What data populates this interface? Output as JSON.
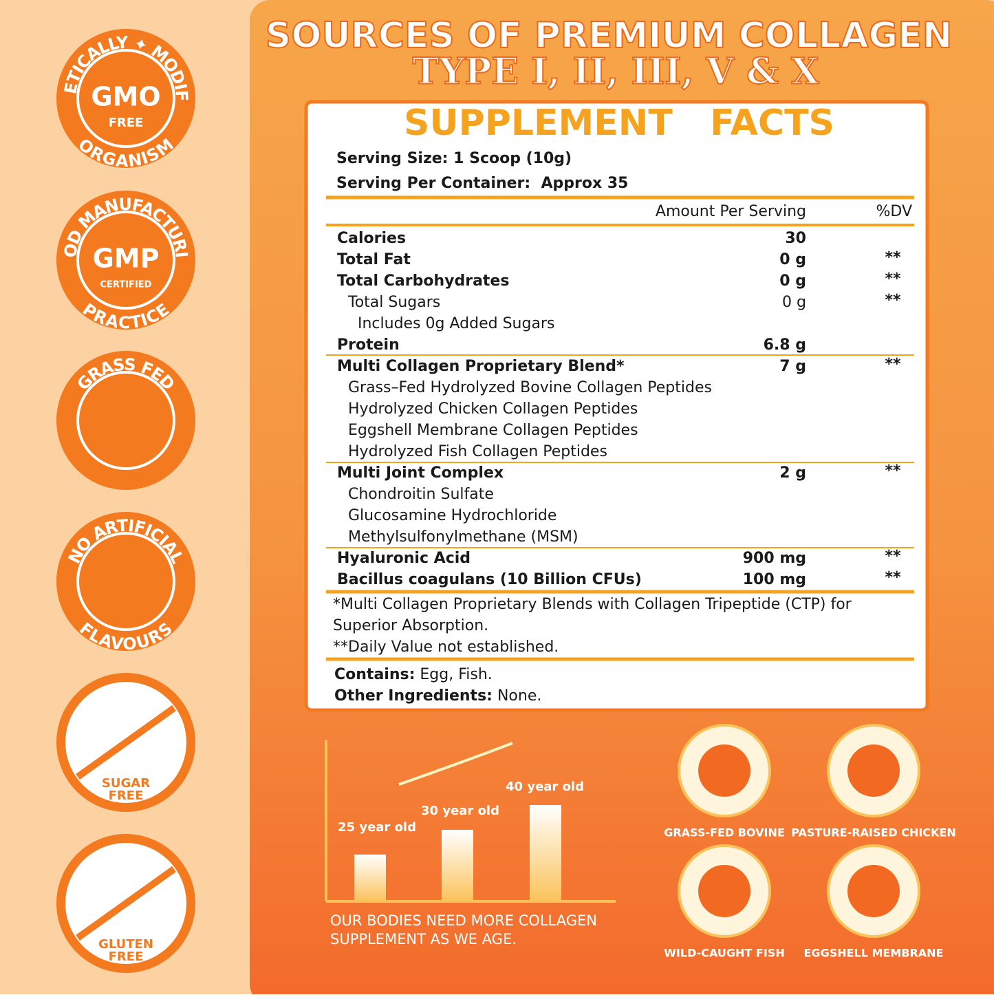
{
  "header": {
    "title_line1": "SOURCES OF PREMIUM COLLAGEN",
    "title_line2": "TYPE I, II, III, V & X"
  },
  "badges": [
    {
      "top": "GENETICALLY ✦ MODIFIED",
      "center": "GMO",
      "sub": "FREE",
      "bottom": "ORGANISM"
    },
    {
      "top": "GOOD MANUFACTURING",
      "center": "GMP",
      "sub": "CERTIFIED",
      "bottom": "PRACTICE"
    },
    {
      "top": "GRASS FED"
    },
    {
      "top": "NO ARTIFICIAL",
      "bottom": "FLAVOURS"
    },
    {
      "center": "SUGAR",
      "sub": "FREE"
    },
    {
      "center": "GLUTEN",
      "sub": "FREE"
    }
  ],
  "facts": {
    "heading": "SUPPLEMENT   FACTS",
    "serving_size": "Serving Size: 1 Scoop (10g)",
    "servings_per_container": "Serving Per Container:  Approx 35",
    "amount_header": "Amount Per Serving",
    "dv_header": "%DV",
    "rows": [
      {
        "name": "Calories",
        "amount": "30"
      },
      {
        "name": "Total Fat",
        "amount": "0 g",
        "dv": "**"
      },
      {
        "name": "Total Carbohydrates",
        "amount": "0 g",
        "dv": "**"
      },
      {
        "name": "Total Sugars",
        "amount": "0 g",
        "dv": "**"
      },
      {
        "name": "Includes 0g Added Sugars"
      },
      {
        "name": "Protein",
        "amount": "6.8 g"
      },
      {
        "name": "Multi Collagen Proprietary Blend*",
        "amount": "7 g",
        "dv": "**"
      },
      {
        "name": "Grass–Fed Hydrolyzed Bovine Collagen Peptides"
      },
      {
        "name": "Hydrolyzed Chicken Collagen Peptides"
      },
      {
        "name": "Eggshell Membrane Collagen Peptides"
      },
      {
        "name": "Hydrolyzed Fish Collagen Peptides"
      },
      {
        "name": "Multi Joint Complex",
        "amount": "2 g",
        "dv": "**"
      },
      {
        "name": "Chondroitin Sulfate"
      },
      {
        "name": "Glucosamine Hydrochloride"
      },
      {
        "name": "Methylsulfonylmethane (MSM)"
      },
      {
        "name": "Hyaluronic Acid",
        "amount": "900 mg",
        "dv": "**"
      },
      {
        "name": "Bacillus coagulans (10 Billion CFUs)",
        "amount": "100 mg",
        "dv": "**"
      }
    ],
    "footnote_lines": [
      "*Multi Collagen Proprietary Blends with Collagen Tripeptide (CTP) for",
      "Superior Absorption.",
      "**Daily Value not established."
    ],
    "contains_label": "Contains:",
    "contains": "Egg, Fish.",
    "other_label": "Other Ingredients:",
    "other": "None."
  },
  "age_chart": {
    "labels": [
      "25 year old",
      "30 year old",
      "40 year old"
    ],
    "caption_lines": [
      "OUR BODIES NEED MORE COLLAGEN",
      "SUPPLEMENT AS WE AGE."
    ]
  },
  "sources": [
    "GRASS-FED BOVINE",
    "PASTURE-RAISED CHICKEN",
    "WILD-CAUGHT FISH",
    "EGGSHELL MEMBRANE"
  ]
}
